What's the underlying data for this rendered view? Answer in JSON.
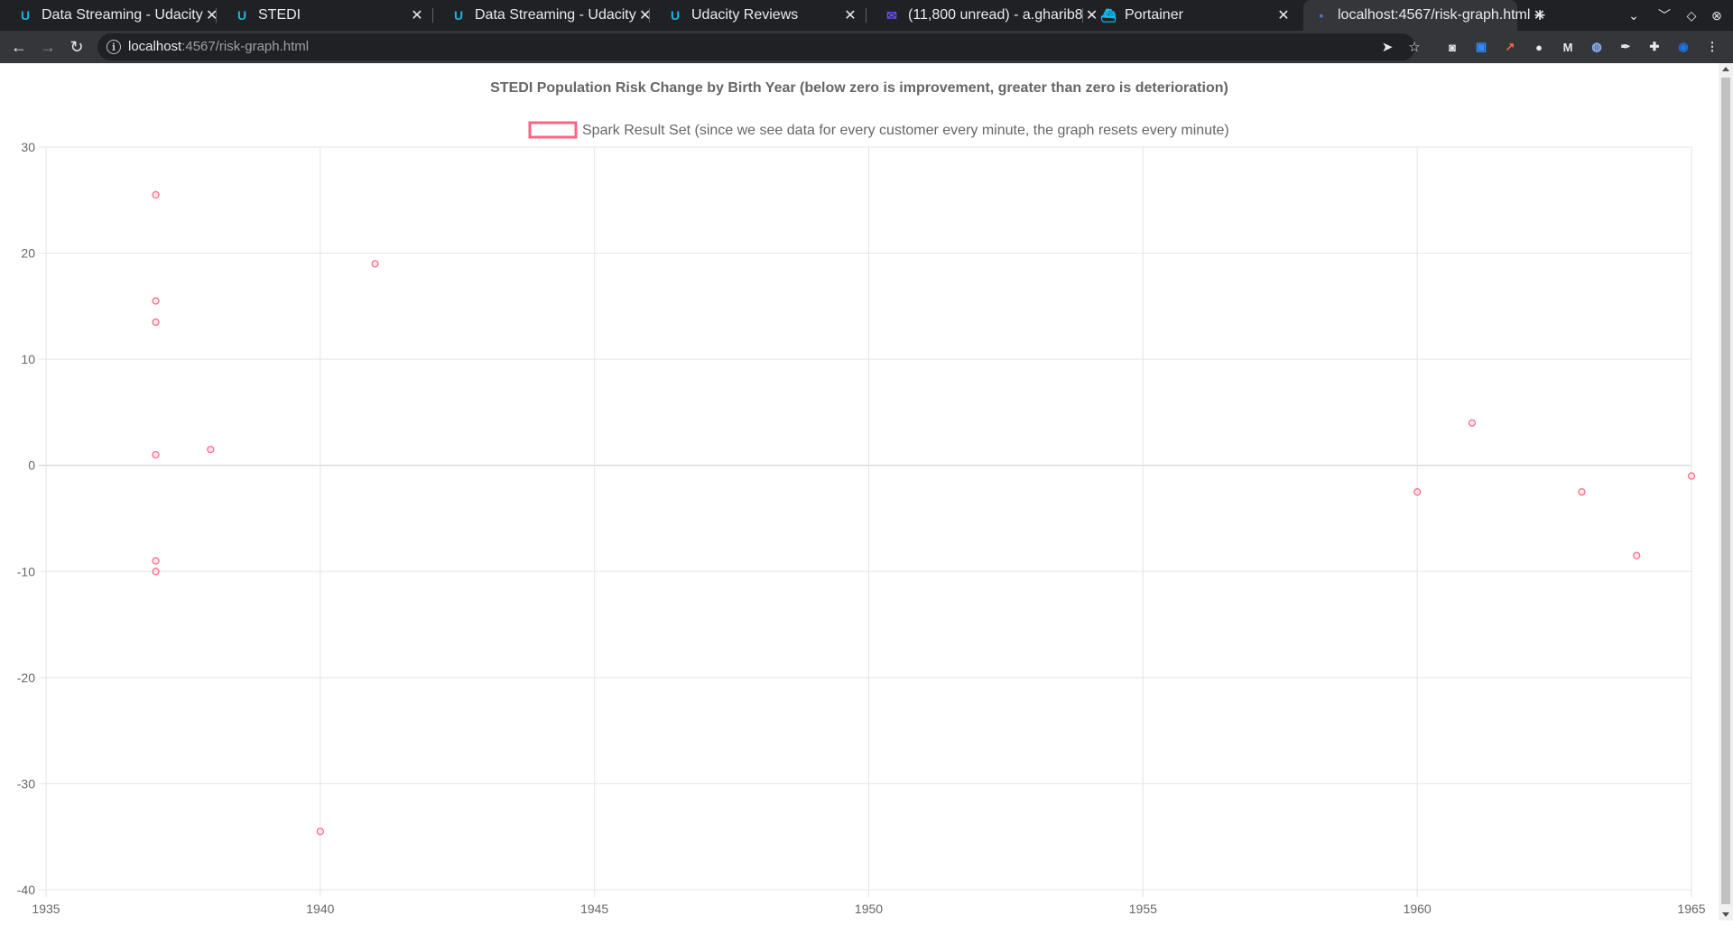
{
  "browser": {
    "tabs": [
      {
        "title": "Data Streaming - Udacity",
        "icon": "udacity-icon"
      },
      {
        "title": "STEDI",
        "icon": "udacity-icon"
      },
      {
        "title": "Data Streaming - Udacity",
        "icon": "udacity-icon"
      },
      {
        "title": "Udacity Reviews",
        "icon": "udacity-icon"
      },
      {
        "title": "(11,800 unread) - a.gharib8",
        "icon": "yahoo-mail-icon"
      },
      {
        "title": "Portainer",
        "icon": "portainer-icon"
      },
      {
        "title": "localhost:4567/risk-graph.html",
        "icon": "page-icon",
        "active": true
      }
    ],
    "url_host": "localhost",
    "url_path": ":4567/risk-graph.html"
  },
  "colors": {
    "point": "#ff6384",
    "grid": "#e5e5e5",
    "text": "#666666"
  },
  "chart_data": {
    "type": "scatter",
    "title": "STEDI Population Risk Change by Birth Year (below zero is improvement, greater than zero is deterioration)",
    "xlabel": "",
    "ylabel": "",
    "xlim": [
      1935,
      1965
    ],
    "ylim": [
      -40,
      30
    ],
    "xticks": [
      1935,
      1940,
      1945,
      1950,
      1955,
      1960,
      1965
    ],
    "yticks": [
      30,
      20,
      10,
      0,
      -10,
      -20,
      -30,
      -40
    ],
    "grid": true,
    "legend_position": "top",
    "series": [
      {
        "name": "Spark Result Set (since we see data for every customer every minute, the graph resets every minute)",
        "color": "#ff6384",
        "points": [
          {
            "x": 1937,
            "y": 25.5
          },
          {
            "x": 1937,
            "y": 15.5
          },
          {
            "x": 1937,
            "y": 13.5
          },
          {
            "x": 1937,
            "y": 1.0
          },
          {
            "x": 1937,
            "y": -9.0
          },
          {
            "x": 1937,
            "y": -10.0
          },
          {
            "x": 1938,
            "y": 1.5
          },
          {
            "x": 1940,
            "y": -34.5
          },
          {
            "x": 1941,
            "y": 19.0
          },
          {
            "x": 1960,
            "y": -2.5
          },
          {
            "x": 1961,
            "y": 4.0
          },
          {
            "x": 1963,
            "y": -2.5
          },
          {
            "x": 1964,
            "y": -8.5
          },
          {
            "x": 1965,
            "y": -1.0
          }
        ]
      }
    ]
  }
}
